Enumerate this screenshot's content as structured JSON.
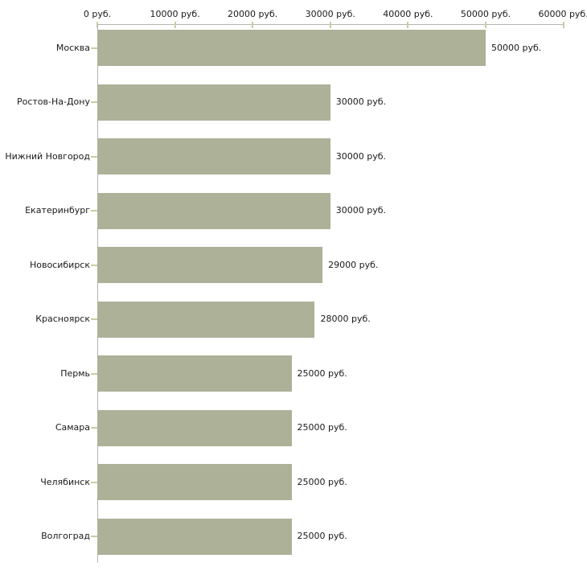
{
  "chart_data": {
    "type": "bar",
    "orientation": "horizontal",
    "title": "",
    "xlabel": "",
    "ylabel": "",
    "unit": "руб.",
    "grid": false,
    "legend": null,
    "xlim": [
      0,
      60000
    ],
    "x_ticks": [
      0,
      10000,
      20000,
      30000,
      40000,
      50000,
      60000
    ],
    "x_tick_labels": [
      "0 руб.",
      "10000 руб.",
      "20000 руб.",
      "30000 руб.",
      "40000 руб.",
      "50000 руб.",
      "60000 руб."
    ],
    "categories": [
      "Москва",
      "Ростов-На-Дону",
      "Нижний Новгород",
      "Екатеринбург",
      "Новосибирск",
      "Красноярск",
      "Пермь",
      "Самара",
      "Челябинск",
      "Волгоград"
    ],
    "values": [
      50000,
      30000,
      30000,
      30000,
      29000,
      28000,
      25000,
      25000,
      25000,
      25000
    ],
    "value_labels": [
      "50000 руб.",
      "30000 руб.",
      "30000 руб.",
      "30000 руб.",
      "29000 руб.",
      "28000 руб.",
      "25000 руб.",
      "25000 руб.",
      "25000 руб.",
      "25000 руб."
    ],
    "colors": {
      "bar": "#acb198",
      "axis_line": "#b4b4b4",
      "tick_mark": "#cdc9a3",
      "text": "#1a1a1a",
      "background": "#ffffff"
    }
  }
}
